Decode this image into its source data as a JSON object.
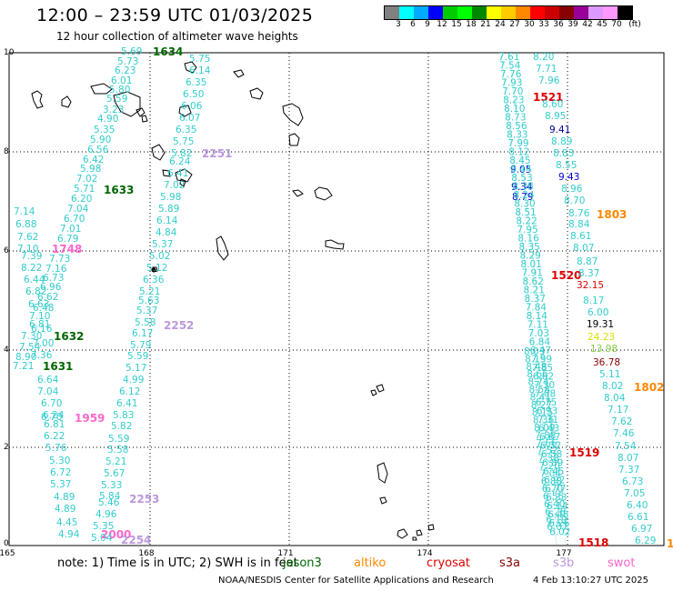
{
  "header": {
    "title": "12:00 – 23:59 UTC 01/03/2025",
    "subtitle": "12 hour collection of altimeter wave heights"
  },
  "colorbar": {
    "labels": [
      "3",
      "6",
      "9",
      "12",
      "15",
      "18",
      "21",
      "24",
      "27",
      "30",
      "33",
      "36",
      "39",
      "42",
      "45",
      "70",
      "(ft)"
    ],
    "colors": [
      "#808080",
      "#00ffff",
      "#00aaff",
      "#0000ff",
      "#00cc00",
      "#00ff00",
      "#008800",
      "#ffff00",
      "#ffcc00",
      "#ff8800",
      "#ff0000",
      "#cc0000",
      "#880000",
      "#990099",
      "#dd99ff",
      "#ff99ff",
      "#000000"
    ]
  },
  "axes": {
    "x_ticks": [
      "165",
      "168",
      "171",
      "174",
      "177"
    ],
    "y_ticks": [
      "10",
      "8",
      "6",
      "4",
      "2",
      "0"
    ]
  },
  "colors": {
    "cyan": "#33cccc",
    "blue": "#0000cc",
    "dark_blue": "#000099",
    "green": "#006600",
    "red": "#dd0000",
    "orange": "#ff8800",
    "pink": "#ff66cc",
    "lavender": "#bb99dd",
    "dark_red": "#880000",
    "light_green": "#88cc44",
    "yellow": "#dddd00",
    "black": "#000000"
  },
  "track_times": [
    {
      "text": "1634",
      "color": "green"
    },
    {
      "text": "2251",
      "color": "lavender"
    },
    {
      "text": "1633",
      "color": "green"
    },
    {
      "text": "1748",
      "color": "pink"
    },
    {
      "text": "2252",
      "color": "lavender"
    },
    {
      "text": "1632",
      "color": "green"
    },
    {
      "text": "1631",
      "color": "green"
    },
    {
      "text": "1959",
      "color": "pink"
    },
    {
      "text": "2253",
      "color": "lavender"
    },
    {
      "text": "2000",
      "color": "pink"
    },
    {
      "text": "2254",
      "color": "lavender"
    },
    {
      "text": "1521",
      "color": "red"
    },
    {
      "text": "1803",
      "color": "orange"
    },
    {
      "text": "1520",
      "color": "red"
    },
    {
      "text": "1802",
      "color": "orange"
    },
    {
      "text": "1519",
      "color": "red"
    },
    {
      "text": "1518",
      "color": "red"
    },
    {
      "text": "1",
      "color": "orange"
    }
  ],
  "readings": [
    {
      "text": "5.69",
      "color": "cyan"
    },
    {
      "text": "5.73",
      "color": "cyan"
    },
    {
      "text": "6.23",
      "color": "cyan"
    },
    {
      "text": "6.01",
      "color": "cyan"
    },
    {
      "text": "5.80",
      "color": "cyan"
    },
    {
      "text": "5.59",
      "color": "cyan"
    },
    {
      "text": "3.23",
      "color": "cyan"
    },
    {
      "text": "4.90",
      "color": "cyan"
    },
    {
      "text": "5.35",
      "color": "cyan"
    },
    {
      "text": "5.90",
      "color": "cyan"
    },
    {
      "text": "6.56",
      "color": "cyan"
    },
    {
      "text": "6.42",
      "color": "cyan"
    },
    {
      "text": "5.98",
      "color": "cyan"
    },
    {
      "text": "7.02",
      "color": "cyan"
    },
    {
      "text": "5.71",
      "color": "cyan"
    },
    {
      "text": "6.20",
      "color": "cyan"
    },
    {
      "text": "7.04",
      "color": "cyan"
    },
    {
      "text": "6.70",
      "color": "cyan"
    },
    {
      "text": "7.01",
      "color": "cyan"
    },
    {
      "text": "6.79",
      "color": "cyan"
    },
    {
      "text": "7.14",
      "color": "cyan"
    },
    {
      "text": "6.88",
      "color": "cyan"
    },
    {
      "text": "7.62",
      "color": "cyan"
    },
    {
      "text": "7.10",
      "color": "cyan"
    },
    {
      "text": "7.39",
      "color": "cyan"
    },
    {
      "text": "7.73",
      "color": "cyan"
    },
    {
      "text": "8.22",
      "color": "cyan"
    },
    {
      "text": "7.16",
      "color": "cyan"
    },
    {
      "text": "6.44",
      "color": "cyan"
    },
    {
      "text": "6.73",
      "color": "cyan"
    },
    {
      "text": "6.96",
      "color": "cyan"
    },
    {
      "text": "6.82",
      "color": "cyan"
    },
    {
      "text": "6.62",
      "color": "cyan"
    },
    {
      "text": "6.63",
      "color": "cyan"
    },
    {
      "text": "6.48",
      "color": "cyan"
    },
    {
      "text": "7.10",
      "color": "cyan"
    },
    {
      "text": "6.81",
      "color": "cyan"
    },
    {
      "text": "6.16",
      "color": "cyan"
    },
    {
      "text": "7.30",
      "color": "cyan"
    },
    {
      "text": "7.00",
      "color": "cyan"
    },
    {
      "text": "7.54",
      "color": "cyan"
    },
    {
      "text": "7.36",
      "color": "cyan"
    },
    {
      "text": "8.90",
      "color": "cyan"
    },
    {
      "text": "7.21",
      "color": "cyan"
    },
    {
      "text": "6.64",
      "color": "cyan"
    },
    {
      "text": "7.04",
      "color": "cyan"
    },
    {
      "text": "6.70",
      "color": "cyan"
    },
    {
      "text": "6.70",
      "color": "cyan"
    },
    {
      "text": "6.24",
      "color": "cyan"
    },
    {
      "text": "6.81",
      "color": "cyan"
    },
    {
      "text": "6.22",
      "color": "cyan"
    },
    {
      "text": "5.76",
      "color": "cyan"
    },
    {
      "text": "5.30",
      "color": "cyan"
    },
    {
      "text": "6.72",
      "color": "cyan"
    },
    {
      "text": "5.37",
      "color": "cyan"
    },
    {
      "text": "4.89",
      "color": "cyan"
    },
    {
      "text": "4.89",
      "color": "cyan"
    },
    {
      "text": "4.45",
      "color": "cyan"
    },
    {
      "text": "4.94",
      "color": "cyan"
    },
    {
      "text": "5.75",
      "color": "cyan"
    },
    {
      "text": "6.14",
      "color": "cyan"
    },
    {
      "text": "6.35",
      "color": "cyan"
    },
    {
      "text": "6.50",
      "color": "cyan"
    },
    {
      "text": "6.06",
      "color": "cyan"
    },
    {
      "text": "6.07",
      "color": "cyan"
    },
    {
      "text": "6.35",
      "color": "cyan"
    },
    {
      "text": "5.75",
      "color": "cyan"
    },
    {
      "text": "5.82",
      "color": "cyan"
    },
    {
      "text": "6.24",
      "color": "cyan"
    },
    {
      "text": "6.41",
      "color": "cyan"
    },
    {
      "text": "7.02",
      "color": "cyan"
    },
    {
      "text": "5.98",
      "color": "cyan"
    },
    {
      "text": "5.89",
      "color": "cyan"
    },
    {
      "text": "6.14",
      "color": "cyan"
    },
    {
      "text": "4.84",
      "color": "cyan"
    },
    {
      "text": "5.37",
      "color": "cyan"
    },
    {
      "text": "5.02",
      "color": "cyan"
    },
    {
      "text": "5.12",
      "color": "cyan"
    },
    {
      "text": "6.36",
      "color": "cyan"
    },
    {
      "text": "5.21",
      "color": "cyan"
    },
    {
      "text": "5.63",
      "color": "cyan"
    },
    {
      "text": "5.37",
      "color": "cyan"
    },
    {
      "text": "5.58",
      "color": "cyan"
    },
    {
      "text": "6.17",
      "color": "cyan"
    },
    {
      "text": "5.79",
      "color": "cyan"
    },
    {
      "text": "5.59",
      "color": "cyan"
    },
    {
      "text": "5.17",
      "color": "cyan"
    },
    {
      "text": "4.99",
      "color": "cyan"
    },
    {
      "text": "6.12",
      "color": "cyan"
    },
    {
      "text": "6.41",
      "color": "cyan"
    },
    {
      "text": "5.83",
      "color": "cyan"
    },
    {
      "text": "5.82",
      "color": "cyan"
    },
    {
      "text": "5.59",
      "color": "cyan"
    },
    {
      "text": "5.58",
      "color": "cyan"
    },
    {
      "text": "5.21",
      "color": "cyan"
    },
    {
      "text": "5.67",
      "color": "cyan"
    },
    {
      "text": "5.33",
      "color": "cyan"
    },
    {
      "text": "5.84",
      "color": "cyan"
    },
    {
      "text": "5.46",
      "color": "cyan"
    },
    {
      "text": "4.96",
      "color": "cyan"
    },
    {
      "text": "5.35",
      "color": "cyan"
    },
    {
      "text": "5.04",
      "color": "cyan"
    },
    {
      "text": "8.20",
      "color": "cyan"
    },
    {
      "text": "7.71",
      "color": "cyan"
    },
    {
      "text": "7.96",
      "color": "cyan"
    },
    {
      "text": "8.60",
      "color": "cyan"
    },
    {
      "text": "8.95",
      "color": "cyan"
    },
    {
      "text": "9.41",
      "color": "dark_blue"
    },
    {
      "text": "8.89",
      "color": "cyan"
    },
    {
      "text": "8.83",
      "color": "cyan"
    },
    {
      "text": "8.55",
      "color": "cyan"
    },
    {
      "text": "9.43",
      "color": "blue"
    },
    {
      "text": "8.96",
      "color": "cyan"
    },
    {
      "text": "8.70",
      "color": "cyan"
    },
    {
      "text": "8.76",
      "color": "cyan"
    },
    {
      "text": "8.84",
      "color": "cyan"
    },
    {
      "text": "8.61",
      "color": "cyan"
    },
    {
      "text": "8.07",
      "color": "cyan"
    },
    {
      "text": "8.87",
      "color": "cyan"
    },
    {
      "text": "8.37",
      "color": "cyan"
    },
    {
      "text": "32.15",
      "color": "red"
    },
    {
      "text": "8.17",
      "color": "cyan"
    },
    {
      "text": "6.00",
      "color": "cyan"
    },
    {
      "text": "19.31",
      "color": "black"
    },
    {
      "text": "24.23",
      "color": "yellow"
    },
    {
      "text": "13.98",
      "color": "light_green"
    },
    {
      "text": "36.78",
      "color": "dark_red"
    },
    {
      "text": "5.11",
      "color": "cyan"
    },
    {
      "text": "8.02",
      "color": "cyan"
    },
    {
      "text": "8.04",
      "color": "cyan"
    },
    {
      "text": "7.17",
      "color": "cyan"
    },
    {
      "text": "7.62",
      "color": "cyan"
    },
    {
      "text": "7.46",
      "color": "cyan"
    },
    {
      "text": "7.54",
      "color": "cyan"
    },
    {
      "text": "8.07",
      "color": "cyan"
    },
    {
      "text": "7.37",
      "color": "cyan"
    },
    {
      "text": "6.73",
      "color": "cyan"
    },
    {
      "text": "7.05",
      "color": "cyan"
    },
    {
      "text": "6.40",
      "color": "cyan"
    },
    {
      "text": "6.61",
      "color": "cyan"
    },
    {
      "text": "6.97",
      "color": "cyan"
    },
    {
      "text": "6.29",
      "color": "cyan"
    },
    {
      "text": "9.05",
      "color": "blue"
    },
    {
      "text": "9.34",
      "color": "blue"
    },
    {
      "text": "8.79",
      "color": "blue"
    },
    {
      "text": "7.61",
      "color": "cyan"
    },
    {
      "text": "7.54",
      "color": "cyan"
    },
    {
      "text": "7.76",
      "color": "cyan"
    },
    {
      "text": "7.93",
      "color": "cyan"
    },
    {
      "text": "7.70",
      "color": "cyan"
    },
    {
      "text": "8.23",
      "color": "cyan"
    },
    {
      "text": "8.10",
      "color": "cyan"
    },
    {
      "text": "8.73",
      "color": "cyan"
    },
    {
      "text": "8.56",
      "color": "cyan"
    },
    {
      "text": "8.33",
      "color": "cyan"
    },
    {
      "text": "7.99",
      "color": "cyan"
    },
    {
      "text": "8.12",
      "color": "cyan"
    },
    {
      "text": "8.45",
      "color": "cyan"
    },
    {
      "text": "8.44",
      "color": "cyan"
    },
    {
      "text": "8.53",
      "color": "cyan"
    },
    {
      "text": "8.38",
      "color": "cyan"
    },
    {
      "text": "8.24",
      "color": "cyan"
    },
    {
      "text": "8.30",
      "color": "cyan"
    },
    {
      "text": "8.51",
      "color": "cyan"
    },
    {
      "text": "8.22",
      "color": "cyan"
    },
    {
      "text": "7.95",
      "color": "cyan"
    },
    {
      "text": "8.16",
      "color": "cyan"
    },
    {
      "text": "8.35",
      "color": "cyan"
    },
    {
      "text": "8.29",
      "color": "cyan"
    },
    {
      "text": "8.01",
      "color": "cyan"
    },
    {
      "text": "7.91",
      "color": "cyan"
    },
    {
      "text": "8.62",
      "color": "cyan"
    },
    {
      "text": "8.21",
      "color": "cyan"
    },
    {
      "text": "8.37",
      "color": "cyan"
    },
    {
      "text": "7.84",
      "color": "cyan"
    },
    {
      "text": "8.14",
      "color": "cyan"
    },
    {
      "text": "7.11",
      "color": "cyan"
    },
    {
      "text": "7.03",
      "color": "cyan"
    },
    {
      "text": "6.84",
      "color": "cyan"
    },
    {
      "text": "6.47",
      "color": "cyan"
    },
    {
      "text": "7.59",
      "color": "cyan"
    },
    {
      "text": "7.85",
      "color": "cyan"
    },
    {
      "text": "6.62",
      "color": "cyan"
    },
    {
      "text": "7.30",
      "color": "cyan"
    },
    {
      "text": "7.08",
      "color": "cyan"
    },
    {
      "text": "6.75",
      "color": "cyan"
    },
    {
      "text": "6.93",
      "color": "cyan"
    },
    {
      "text": "7.31",
      "color": "cyan"
    },
    {
      "text": "6.43",
      "color": "cyan"
    },
    {
      "text": "6.67",
      "color": "cyan"
    },
    {
      "text": "6.32",
      "color": "cyan"
    },
    {
      "text": "6.58",
      "color": "cyan"
    },
    {
      "text": "6.89",
      "color": "cyan"
    },
    {
      "text": "6.45",
      "color": "cyan"
    },
    {
      "text": "6.92",
      "color": "cyan"
    },
    {
      "text": "6.77",
      "color": "cyan"
    },
    {
      "text": "6.33",
      "color": "cyan"
    },
    {
      "text": "6.14",
      "color": "cyan"
    },
    {
      "text": "6.48",
      "color": "cyan"
    },
    {
      "text": "6.26",
      "color": "cyan"
    },
    {
      "text": "6.02",
      "color": "cyan"
    },
    {
      "text": "8.03",
      "color": "cyan"
    },
    {
      "text": "8.19",
      "color": "cyan"
    },
    {
      "text": "8.48",
      "color": "cyan"
    },
    {
      "text": "8.66",
      "color": "cyan"
    },
    {
      "text": "8.74",
      "color": "cyan"
    },
    {
      "text": "8.58",
      "color": "cyan"
    },
    {
      "text": "8.41",
      "color": "cyan"
    },
    {
      "text": "8.27",
      "color": "cyan"
    },
    {
      "text": "8.15",
      "color": "cyan"
    },
    {
      "text": "8.36",
      "color": "cyan"
    },
    {
      "text": "8.09",
      "color": "cyan"
    },
    {
      "text": "7.88",
      "color": "cyan"
    },
    {
      "text": "7.66",
      "color": "cyan"
    },
    {
      "text": "7.52",
      "color": "cyan"
    },
    {
      "text": "7.38",
      "color": "cyan"
    },
    {
      "text": "7.20",
      "color": "cyan"
    },
    {
      "text": "7.04",
      "color": "cyan"
    },
    {
      "text": "6.88",
      "color": "cyan"
    },
    {
      "text": "6.70",
      "color": "cyan"
    },
    {
      "text": "6.55",
      "color": "cyan"
    },
    {
      "text": "6.40",
      "color": "cyan"
    },
    {
      "text": "6.28",
      "color": "cyan"
    },
    {
      "text": "6.19",
      "color": "cyan"
    },
    {
      "text": "6.07",
      "color": "cyan"
    }
  ],
  "footer": {
    "note": "note: 1) Time is in UTC; 2) SWH is in feet",
    "legend": [
      {
        "text": "jason3",
        "color": "green"
      },
      {
        "text": "altiko",
        "color": "orange"
      },
      {
        "text": "cryosat",
        "color": "red"
      },
      {
        "text": "s3a",
        "color": "dark_red"
      },
      {
        "text": "s3b",
        "color": "lavender"
      },
      {
        "text": "swot",
        "color": "pink"
      }
    ],
    "credit": "NOAA/NESDIS Center for Satellite Applications and Research",
    "timestamp": "4 Feb 13:10:27 UTC 2025"
  }
}
